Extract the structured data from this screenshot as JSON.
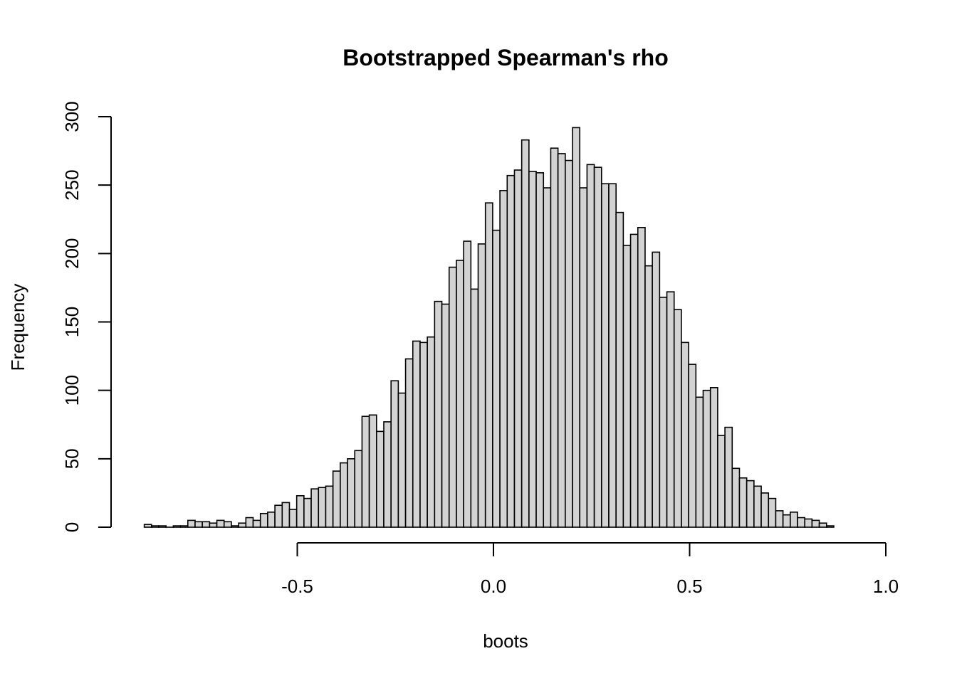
{
  "chart_data": {
    "type": "bar",
    "title": "Bootstrapped Spearman's rho",
    "xlabel": "boots",
    "ylabel": "Frequency",
    "bin_start": -0.89,
    "bin_width": 0.0185,
    "values": [
      2,
      1,
      1,
      0,
      1,
      1,
      5,
      4,
      4,
      3,
      5,
      4,
      1,
      3,
      7,
      5,
      10,
      11,
      16,
      18,
      13,
      23,
      21,
      28,
      29,
      30,
      41,
      47,
      50,
      56,
      81,
      82,
      70,
      77,
      107,
      98,
      123,
      136,
      135,
      139,
      165,
      163,
      190,
      195,
      209,
      174,
      207,
      237,
      217,
      246,
      257,
      261,
      283,
      260,
      259,
      248,
      277,
      273,
      268,
      292,
      248,
      265,
      263,
      251,
      251,
      230,
      206,
      214,
      219,
      191,
      201,
      168,
      172,
      159,
      135,
      119,
      95,
      100,
      102,
      67,
      73,
      43,
      36,
      34,
      30,
      25,
      21,
      12,
      9,
      11,
      7,
      6,
      5,
      3,
      1
    ],
    "x_ticks": [
      -0.5,
      0.0,
      0.5,
      1.0
    ],
    "x_tick_labels": [
      "-0.5",
      "0.0",
      "0.5",
      "1.0"
    ],
    "y_ticks": [
      0,
      50,
      100,
      150,
      200,
      250,
      300
    ],
    "y_tick_labels": [
      "0",
      "50",
      "100",
      "150",
      "200",
      "250",
      "300"
    ],
    "xlim": [
      -0.9,
      1.0
    ],
    "ylim": [
      0,
      300
    ],
    "bar_fill": "#d3d3d3",
    "bar_stroke": "#000000",
    "grid": false
  }
}
